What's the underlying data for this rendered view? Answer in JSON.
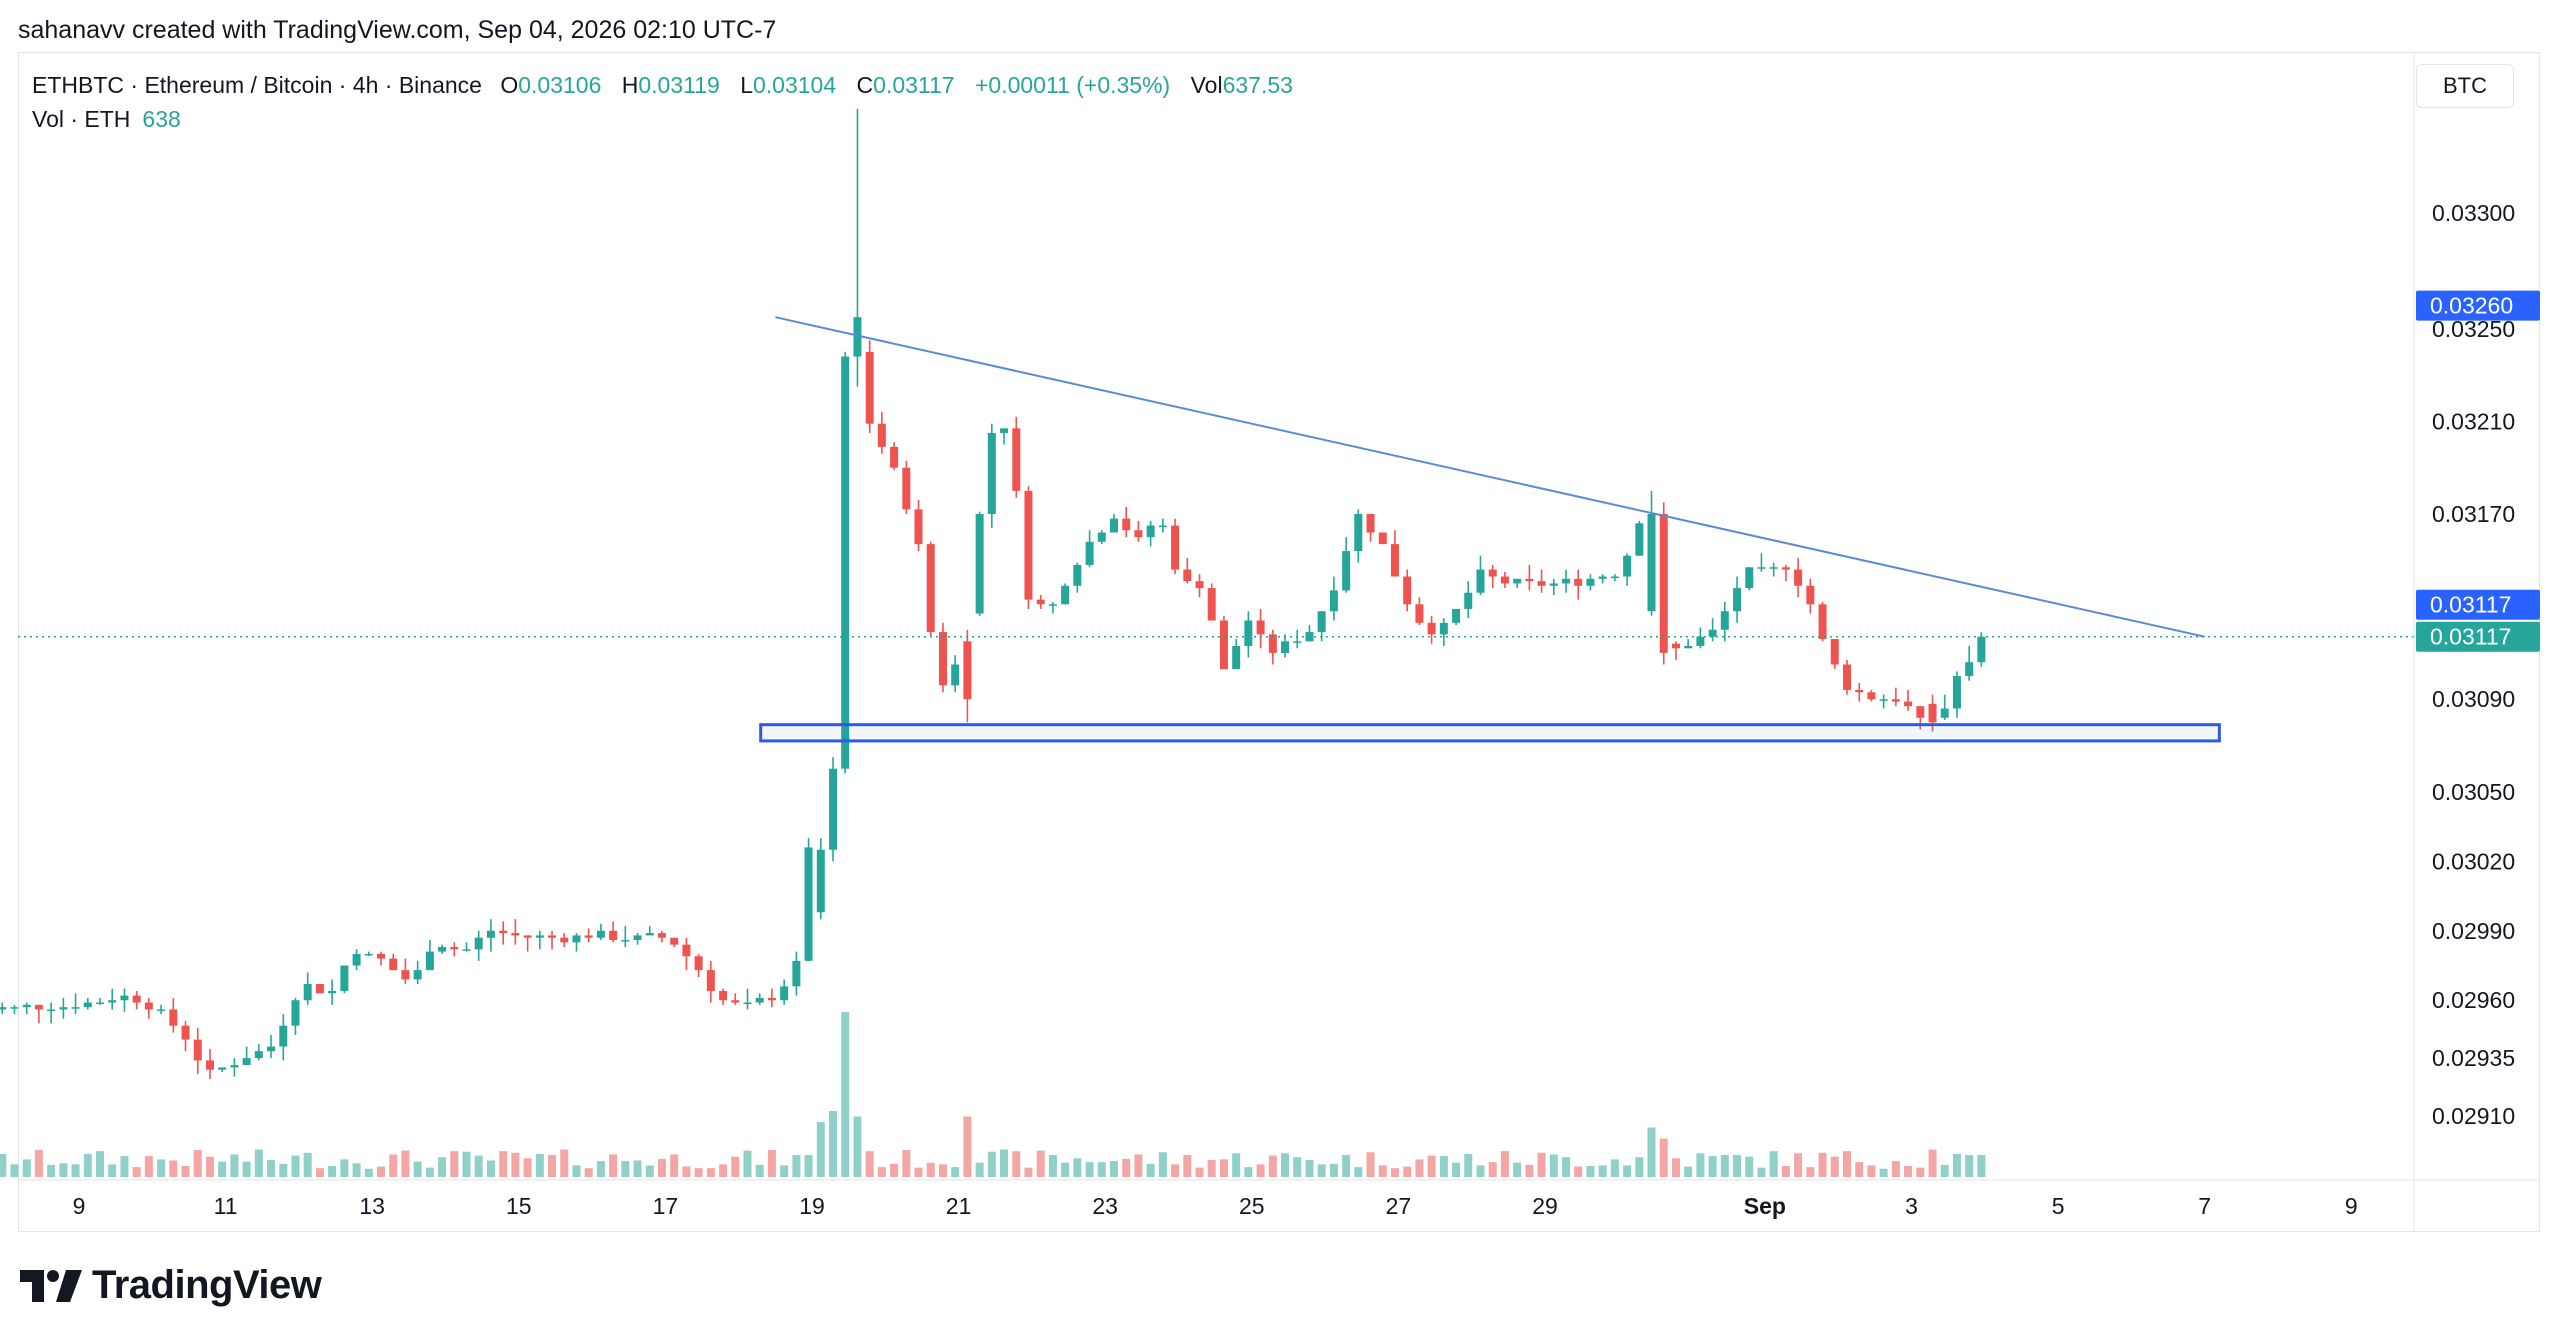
{
  "header": {
    "credit": "sahanavv created with TradingView.com, Sep 04, 2026 02:10 UTC-7"
  },
  "legend": {
    "symbol": "ETHBTC · Ethereum / Bitcoin · 4h · Binance",
    "open_label": "O",
    "open": "0.03106",
    "high_label": "H",
    "high": "0.03119",
    "low_label": "L",
    "low": "0.03104",
    "close_label": "C",
    "close": "0.03117",
    "change": "+0.00011 (+0.35%)",
    "vol_label": "Vol",
    "vol": "637.53",
    "vol_series": "Vol · ETH",
    "vol_series_value": "638"
  },
  "price_scale": {
    "currency": "BTC"
  },
  "brand": {
    "name": "TradingView"
  },
  "colors": {
    "up": "#26a69a",
    "down": "#ef5350",
    "up_vol": "#8fd0c8",
    "down_vol": "#f4a6a5",
    "trendline": "#5b8bd6",
    "support_box": "#2c5ae8",
    "price_line": "#26a69a",
    "marker_blue": "#2962ff"
  },
  "chart_data": {
    "type": "candlestick",
    "interval": "4h",
    "y_axis_ticks": [
      "0.03300",
      "0.03250",
      "0.03210",
      "0.03170",
      "0.03090",
      "0.03050",
      "0.03020",
      "0.02990",
      "0.02960",
      "0.02935",
      "0.02910"
    ],
    "x_axis_ticks": [
      {
        "label": "9",
        "day": 9
      },
      {
        "label": "11",
        "day": 11
      },
      {
        "label": "13",
        "day": 13
      },
      {
        "label": "15",
        "day": 15
      },
      {
        "label": "17",
        "day": 17
      },
      {
        "label": "19",
        "day": 19
      },
      {
        "label": "21",
        "day": 21
      },
      {
        "label": "23",
        "day": 23
      },
      {
        "label": "25",
        "day": 25
      },
      {
        "label": "27",
        "day": 27
      },
      {
        "label": "29",
        "day": 29
      },
      {
        "label": "Sep",
        "day": 32,
        "bold": true
      },
      {
        "label": "3",
        "day": 34
      },
      {
        "label": "5",
        "day": 36
      },
      {
        "label": "7",
        "day": 38
      },
      {
        "label": "9",
        "day": 40
      }
    ],
    "price_markers": [
      {
        "label": "0.03260",
        "value": 0.0326,
        "color": "#2962ff"
      },
      {
        "label": "0.03117",
        "value": 0.03117,
        "color": "#2962ff"
      },
      {
        "label": "0.03117",
        "value": 0.03117,
        "color": "#26a69a"
      }
    ],
    "current_price": 0.03117,
    "trendline": {
      "from": {
        "day": 18.5,
        "price": 0.03255
      },
      "to": {
        "day": 38.0,
        "price": 0.03117
      }
    },
    "support_zone": {
      "from_day": 18.3,
      "to_day": 38.2,
      "top": 0.03079,
      "bottom": 0.03072
    },
    "candles": []
  }
}
